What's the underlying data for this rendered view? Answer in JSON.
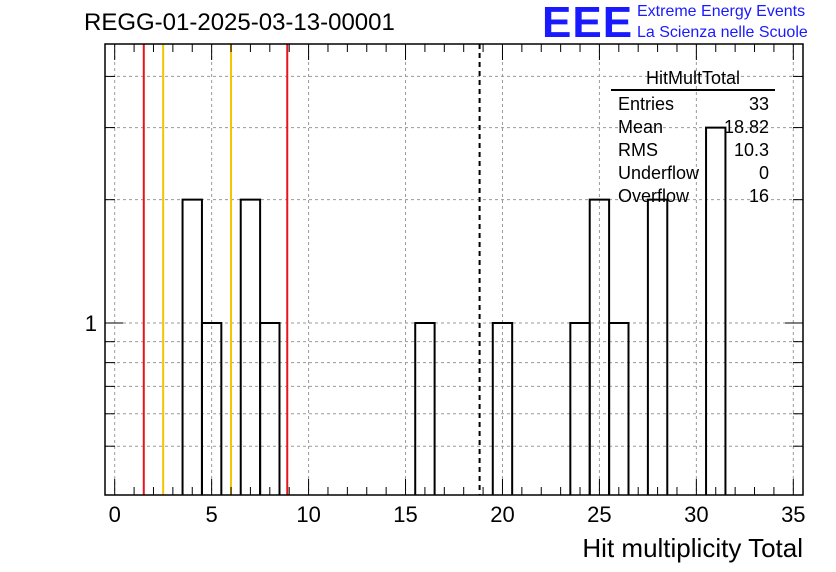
{
  "title": "REGG-01-2025-03-13-00001",
  "logo": {
    "text": "EEE",
    "line1": "Extreme Energy Events",
    "line2": "La Scienza nelle Scuole",
    "color": "#1a1aff"
  },
  "stats": {
    "title": "HitMultTotal",
    "rows": [
      {
        "label": "Entries",
        "value": "33"
      },
      {
        "label": "Mean",
        "value": "18.82"
      },
      {
        "label": "RMS",
        "value": "10.3"
      },
      {
        "label": "Underflow",
        "value": "0"
      },
      {
        "label": "Overflow",
        "value": "16"
      }
    ]
  },
  "chart_data": {
    "type": "histogram",
    "xlabel": "Hit multiplicity Total",
    "ylabel": "",
    "xlim": [
      -0.5,
      35.5
    ],
    "ylim": [
      0.38,
      4.8
    ],
    "log_y": true,
    "grid": true,
    "x_ticks": [
      0,
      5,
      10,
      15,
      20,
      25,
      30,
      35
    ],
    "y_tick_labels": [
      {
        "value": 1,
        "label": "1"
      }
    ],
    "bins": [
      {
        "low": 3.5,
        "high": 4.5,
        "count": 2
      },
      {
        "low": 4.5,
        "high": 5.5,
        "count": 1
      },
      {
        "low": 6.5,
        "high": 7.5,
        "count": 2
      },
      {
        "low": 7.5,
        "high": 8.5,
        "count": 1
      },
      {
        "low": 15.5,
        "high": 16.5,
        "count": 1
      },
      {
        "low": 19.5,
        "high": 20.5,
        "count": 1
      },
      {
        "low": 23.5,
        "high": 24.5,
        "count": 1
      },
      {
        "low": 24.5,
        "high": 25.5,
        "count": 2
      },
      {
        "low": 25.5,
        "high": 26.5,
        "count": 1
      },
      {
        "low": 27.5,
        "high": 28.5,
        "count": 2
      },
      {
        "low": 30.5,
        "high": 31.5,
        "count": 3
      }
    ],
    "vertical_lines": [
      {
        "x": 1.5,
        "color": "#e8141c",
        "style": "solid"
      },
      {
        "x": 2.5,
        "color": "#f5c400",
        "style": "solid"
      },
      {
        "x": 6,
        "color": "#f5c400",
        "style": "solid"
      },
      {
        "x": 8.9,
        "color": "#e8141c",
        "style": "solid"
      },
      {
        "x": 18.82,
        "color": "#000000",
        "style": "dashed"
      }
    ]
  }
}
